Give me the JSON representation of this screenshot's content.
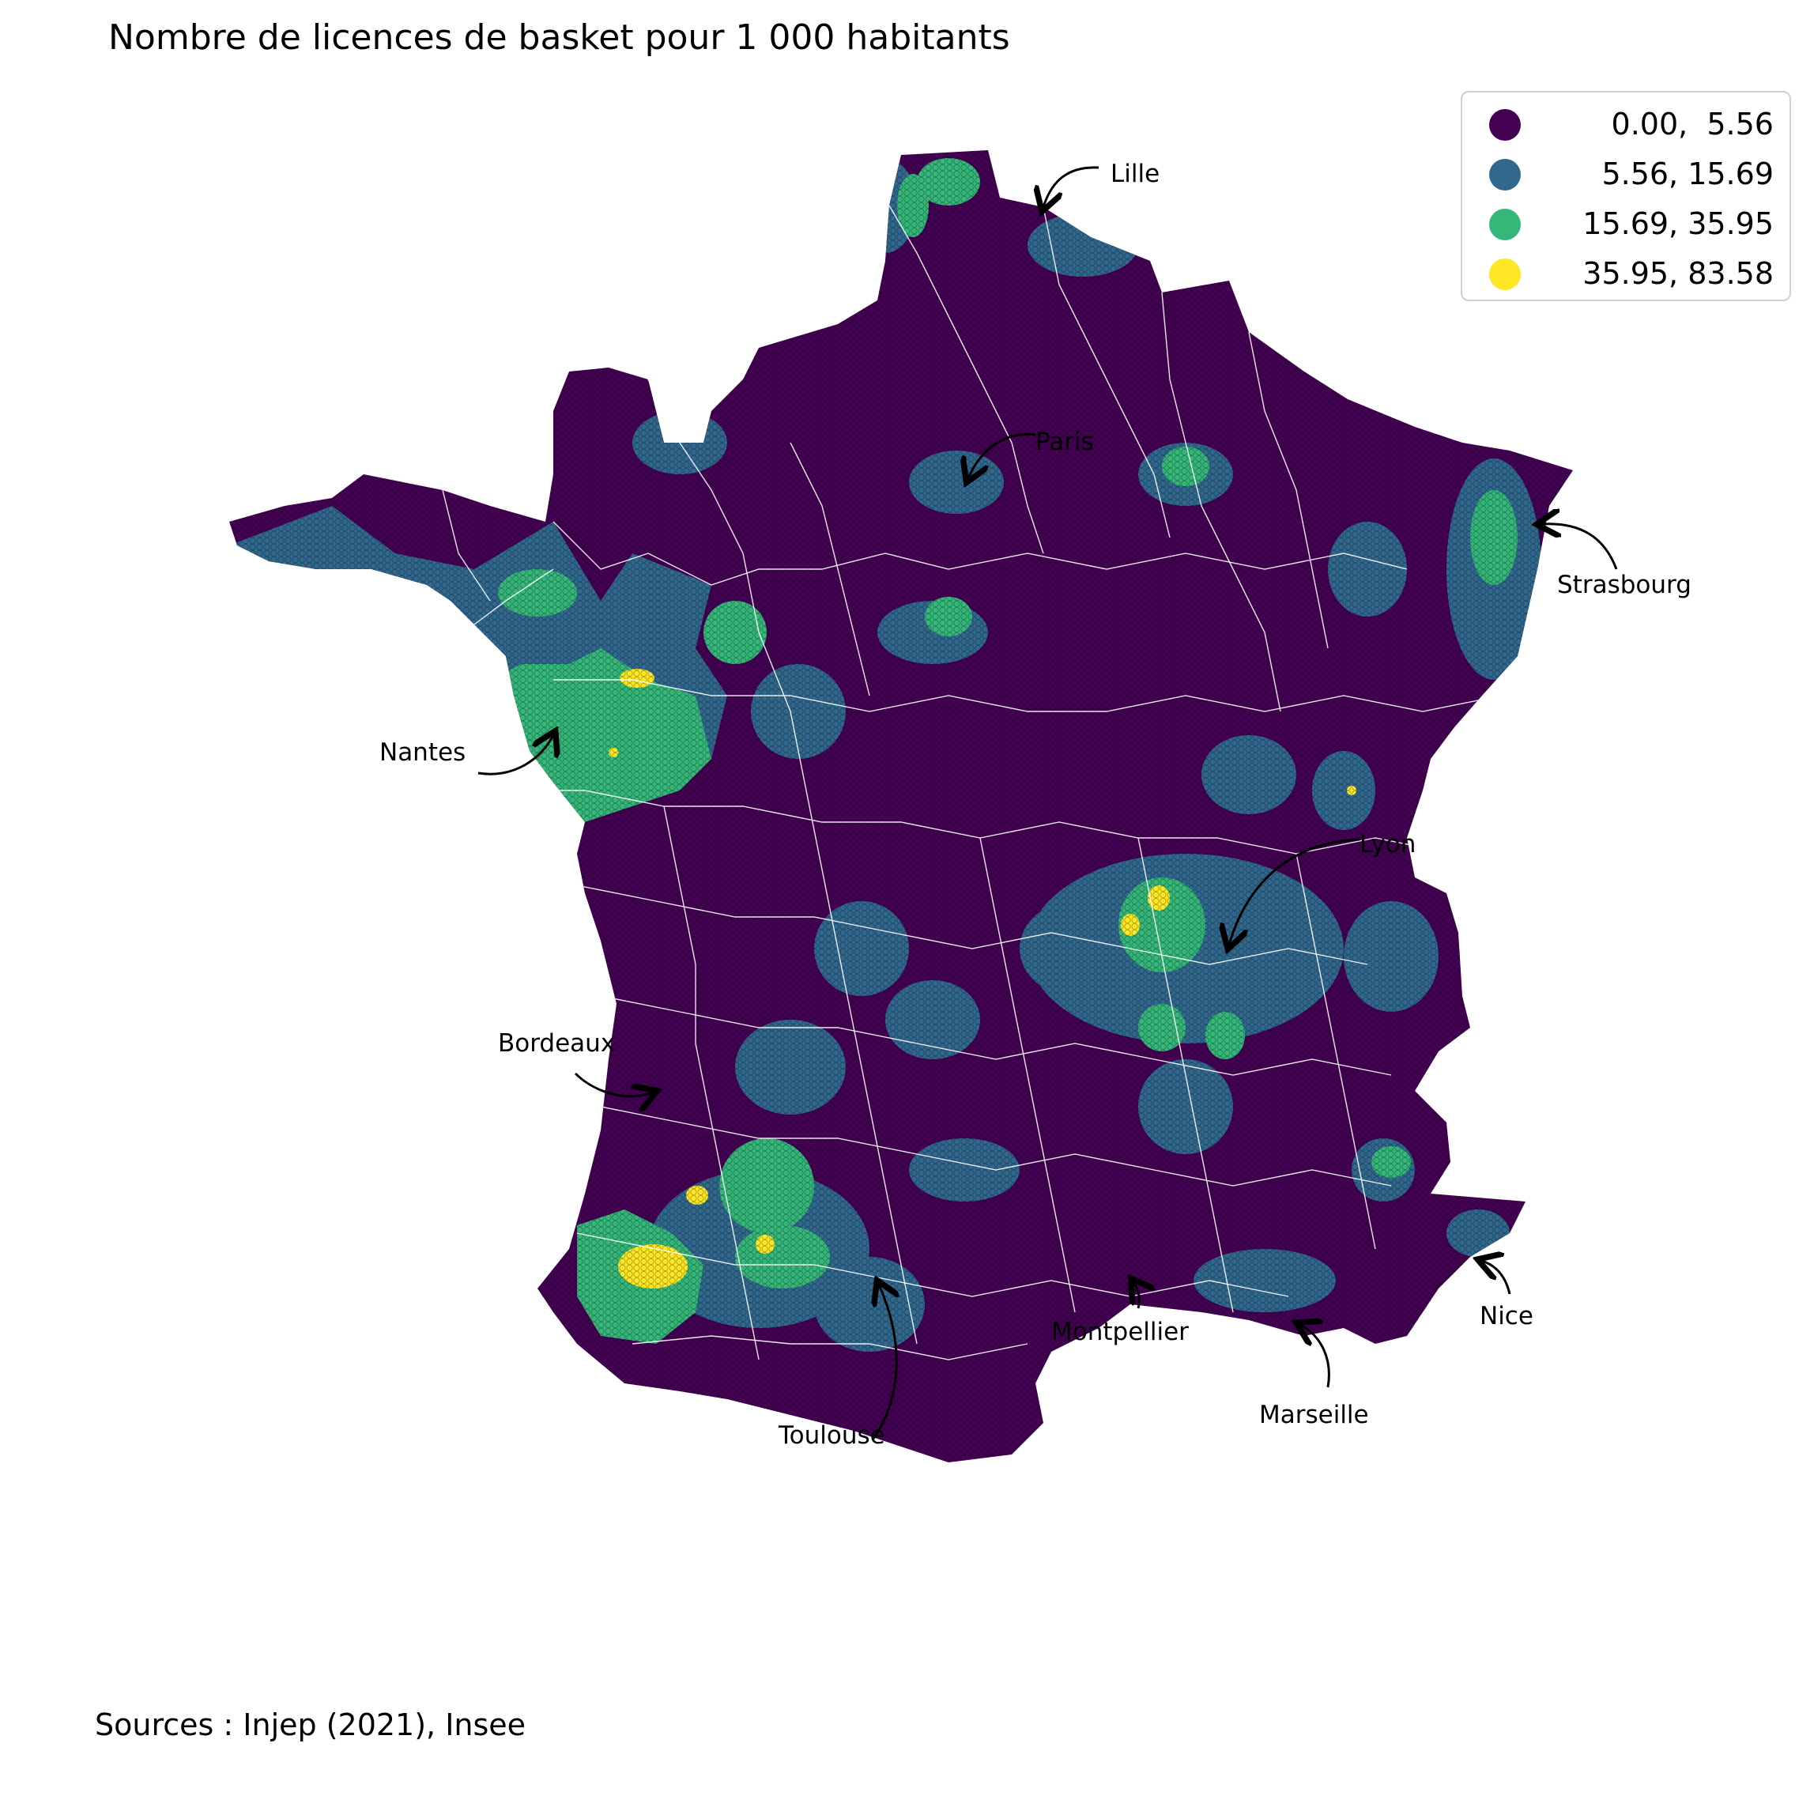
{
  "title": "Nombre de licences de basket pour 1 000 habitants",
  "source": "Sources : Injep (2021), Insee",
  "legend": {
    "items": [
      {
        "label": " 0.00,  5.56",
        "color": "#440154"
      },
      {
        "label": " 5.56, 15.69",
        "color": "#31688e"
      },
      {
        "label": "15.69, 35.95",
        "color": "#35b779"
      },
      {
        "label": "35.95, 83.58",
        "color": "#fde725"
      }
    ]
  },
  "cities": {
    "lille": "Lille",
    "paris": "Paris",
    "strasbourg": "Strasbourg",
    "nantes": "Nantes",
    "lyon": "Lyon",
    "bordeaux": "Bordeaux",
    "toulouse": "Toulouse",
    "montpellier": "Montpellier",
    "marseille": "Marseille",
    "nice": "Nice"
  },
  "colors": {
    "base": "#440154",
    "mid": "#31688e",
    "high": "#35b779",
    "top": "#fde725",
    "borders": "#ffffff",
    "arrows": "#000000"
  }
}
